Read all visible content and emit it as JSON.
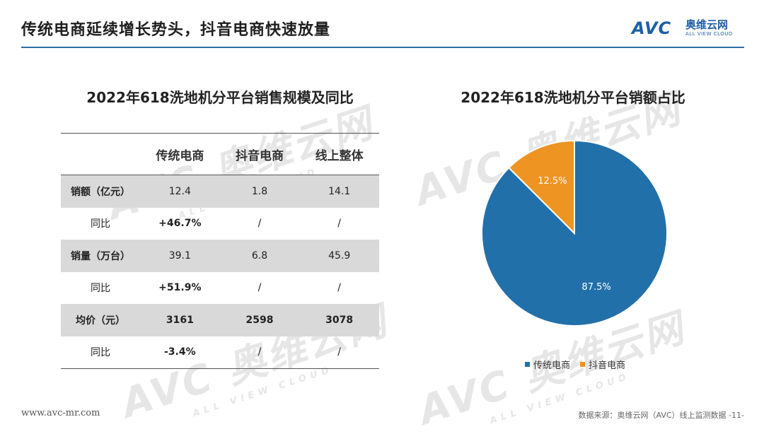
{
  "header": {
    "title": "传统电商延续增长势头，抖音电商快速放量",
    "logo_mark": "AVC",
    "logo_cn": "奥维云网",
    "logo_en": "ALL VIEW CLOUD"
  },
  "watermark": {
    "mark": "AVC 奥维云网",
    "sub": "ALL VIEW CLOUD"
  },
  "table": {
    "title": "2022年618洗地机分平台销售规模及同比",
    "columns": [
      "",
      "传统电商",
      "抖音电商",
      "线上整体"
    ],
    "rows": [
      {
        "label": "销额（亿元）",
        "values": [
          "12.4",
          "1.8",
          "14.1"
        ]
      },
      {
        "label": "同比",
        "values": [
          "+46.7%",
          "/",
          "/"
        ]
      },
      {
        "label": "销量（万台）",
        "values": [
          "39.1",
          "6.8",
          "45.9"
        ]
      },
      {
        "label": "同比",
        "values": [
          "+51.9%",
          "/",
          "/"
        ]
      },
      {
        "label": "均价（元）",
        "values": [
          "3161",
          "2598",
          "3078"
        ]
      },
      {
        "label": "同比",
        "values": [
          "-3.4%",
          "/",
          "/"
        ]
      }
    ]
  },
  "chart_data": {
    "type": "pie",
    "title": "2022年618洗地机分平台销额占比",
    "categories": [
      "传统电商",
      "抖音电商"
    ],
    "values": [
      87.5,
      12.5
    ],
    "labels": [
      "87.5%",
      "12.5%"
    ],
    "colors": [
      "#2270aa",
      "#ee9422"
    ],
    "legend_position": "bottom"
  },
  "footer": {
    "website": "www.avc-mr.com",
    "source": "数据来源：奥维云网（AVC）线上监测数据  -11-"
  }
}
